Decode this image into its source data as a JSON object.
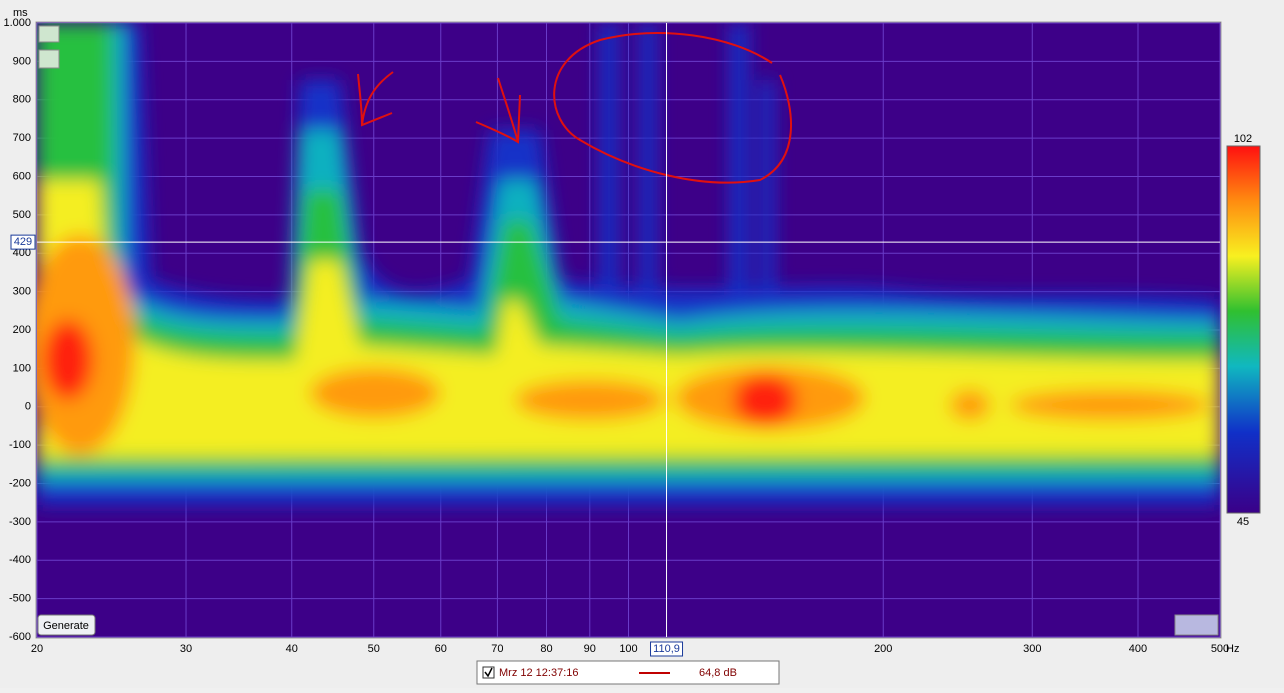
{
  "chart_data": {
    "type": "spectrogram",
    "y_unit": "ms",
    "x_unit": "Hz",
    "ylim": [
      -600,
      1000
    ],
    "yticks": [
      {
        "value": 1000,
        "label": "1.000"
      },
      900,
      800,
      700,
      600,
      500,
      400,
      300,
      200,
      100,
      0,
      -100,
      -200,
      -300,
      -400,
      -500,
      -600
    ],
    "xlim": [
      20,
      500
    ],
    "xscale": "log",
    "xticks": [
      20,
      30,
      40,
      50,
      60,
      70,
      80,
      90,
      100,
      200,
      300,
      400,
      500
    ],
    "grid": true,
    "cursor": {
      "x": 110.9,
      "x_label": "110,9",
      "y": 429
    },
    "colorbar": {
      "lim": [
        45,
        102
      ]
    }
  },
  "button": "Generate",
  "legend": {
    "name": "Mrz 12 12:37:16",
    "value": "64,8 dB",
    "color": "#c00000"
  }
}
